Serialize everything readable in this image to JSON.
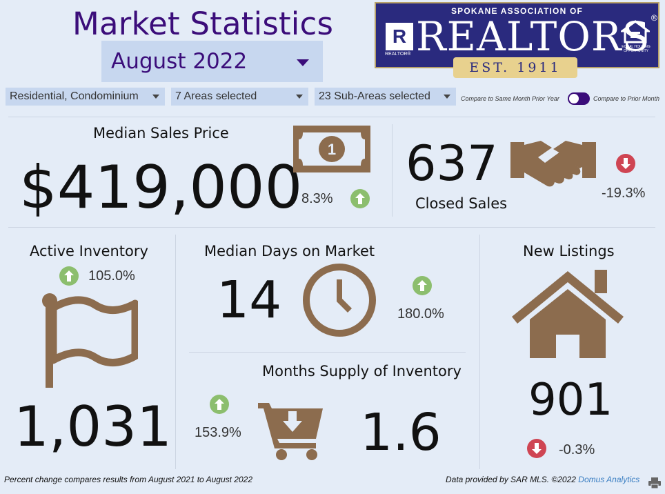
{
  "header": {
    "title": "Market Statistics",
    "month": "August 2022"
  },
  "logo": {
    "org": "SPOKANE ASSOCIATION OF",
    "word": "REALTORS",
    "registered": "®",
    "r_mark": "R",
    "r_sub": "REALTOR®",
    "established": "EST. 1911",
    "eho_text": "EQUAL HOUSING OPPORTUNITY"
  },
  "filters": {
    "property_type": "Residential, Condominium",
    "areas": "7 Areas selected",
    "sub_areas": "23 Sub-Areas selected",
    "toggle_left": "Compare to Same Month Prior Year",
    "toggle_right": "Compare to Prior Month"
  },
  "metrics": {
    "median_price": {
      "label": "Median Sales Price",
      "value": "$419,000",
      "change": "8.3%",
      "direction": "up"
    },
    "closed_sales": {
      "label": "Closed Sales",
      "value": "637",
      "change": "-19.3%",
      "direction": "down"
    },
    "active_inventory": {
      "label": "Active Inventory",
      "value": "1,031",
      "change": "105.0%",
      "direction": "up"
    },
    "days_on_market": {
      "label": "Median Days on Market",
      "value": "14",
      "change": "180.0%",
      "direction": "up"
    },
    "months_supply": {
      "label": "Months Supply of Inventory",
      "value": "1.6",
      "change": "153.9%",
      "direction": "up"
    },
    "new_listings": {
      "label": "New Listings",
      "value": "901",
      "change": "-0.3%",
      "direction": "down"
    }
  },
  "footer": {
    "note": "Percent change compares results from August 2021 to August 2022",
    "credit": "Data provided by SAR MLS. ©2022 ",
    "link": "Domus Analytics"
  },
  "colors": {
    "background": "#e4ecf7",
    "accent": "#3b0d7a",
    "icon_brown": "#8c6c4e",
    "up_green": "#8cbe6e",
    "down_red": "#cf4553"
  }
}
